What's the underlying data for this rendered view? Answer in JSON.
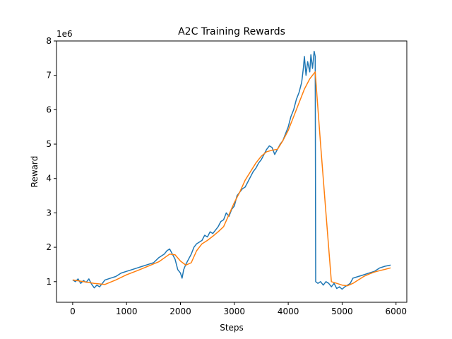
{
  "chart_data": {
    "type": "line",
    "title": "A2C Training Rewards",
    "xlabel": "Steps",
    "ylabel": "Reward",
    "y_scale_label": "1e6",
    "xlim": [
      -300,
      6200
    ],
    "ylim": [
      0.4,
      8.0
    ],
    "x_ticks": [
      0,
      1000,
      2000,
      3000,
      4000,
      5000,
      6000
    ],
    "y_ticks": [
      1,
      2,
      3,
      4,
      5,
      6,
      7,
      8
    ],
    "grid": false,
    "legend": "none",
    "series": [
      {
        "color": "#1f77b4",
        "points": [
          [
            0,
            1.05
          ],
          [
            50,
            1.0
          ],
          [
            100,
            1.08
          ],
          [
            150,
            0.95
          ],
          [
            200,
            1.03
          ],
          [
            250,
            0.98
          ],
          [
            300,
            1.08
          ],
          [
            350,
            0.93
          ],
          [
            400,
            0.82
          ],
          [
            450,
            0.9
          ],
          [
            500,
            0.85
          ],
          [
            550,
            0.95
          ],
          [
            600,
            1.05
          ],
          [
            700,
            1.1
          ],
          [
            800,
            1.15
          ],
          [
            900,
            1.25
          ],
          [
            1000,
            1.3
          ],
          [
            1100,
            1.35
          ],
          [
            1200,
            1.4
          ],
          [
            1300,
            1.45
          ],
          [
            1400,
            1.5
          ],
          [
            1500,
            1.55
          ],
          [
            1600,
            1.7
          ],
          [
            1700,
            1.8
          ],
          [
            1750,
            1.9
          ],
          [
            1800,
            1.95
          ],
          [
            1850,
            1.8
          ],
          [
            1900,
            1.65
          ],
          [
            1950,
            1.35
          ],
          [
            2000,
            1.25
          ],
          [
            2030,
            1.1
          ],
          [
            2060,
            1.35
          ],
          [
            2100,
            1.5
          ],
          [
            2200,
            1.8
          ],
          [
            2250,
            2.0
          ],
          [
            2300,
            2.1
          ],
          [
            2400,
            2.2
          ],
          [
            2450,
            2.35
          ],
          [
            2500,
            2.3
          ],
          [
            2550,
            2.45
          ],
          [
            2600,
            2.4
          ],
          [
            2650,
            2.5
          ],
          [
            2700,
            2.6
          ],
          [
            2750,
            2.75
          ],
          [
            2800,
            2.8
          ],
          [
            2850,
            3.0
          ],
          [
            2900,
            2.9
          ],
          [
            2950,
            3.1
          ],
          [
            3000,
            3.2
          ],
          [
            3050,
            3.5
          ],
          [
            3100,
            3.6
          ],
          [
            3150,
            3.7
          ],
          [
            3200,
            3.75
          ],
          [
            3250,
            3.9
          ],
          [
            3300,
            4.05
          ],
          [
            3350,
            4.2
          ],
          [
            3400,
            4.3
          ],
          [
            3450,
            4.45
          ],
          [
            3500,
            4.55
          ],
          [
            3550,
            4.7
          ],
          [
            3600,
            4.85
          ],
          [
            3650,
            4.95
          ],
          [
            3700,
            4.9
          ],
          [
            3750,
            4.7
          ],
          [
            3800,
            4.85
          ],
          [
            3850,
            5.0
          ],
          [
            3900,
            5.1
          ],
          [
            3950,
            5.3
          ],
          [
            4000,
            5.5
          ],
          [
            4050,
            5.8
          ],
          [
            4100,
            6.0
          ],
          [
            4150,
            6.3
          ],
          [
            4200,
            6.5
          ],
          [
            4250,
            6.8
          ],
          [
            4280,
            7.2
          ],
          [
            4300,
            7.55
          ],
          [
            4330,
            7.0
          ],
          [
            4360,
            7.4
          ],
          [
            4400,
            7.1
          ],
          [
            4420,
            7.6
          ],
          [
            4450,
            7.2
          ],
          [
            4480,
            7.7
          ],
          [
            4500,
            7.55
          ],
          [
            4510,
            1.0
          ],
          [
            4550,
            0.95
          ],
          [
            4600,
            1.0
          ],
          [
            4650,
            0.9
          ],
          [
            4700,
            1.0
          ],
          [
            4750,
            0.95
          ],
          [
            4800,
            0.85
          ],
          [
            4850,
            0.95
          ],
          [
            4900,
            0.8
          ],
          [
            4950,
            0.85
          ],
          [
            5000,
            0.78
          ],
          [
            5050,
            0.85
          ],
          [
            5100,
            0.9
          ],
          [
            5150,
            0.95
          ],
          [
            5200,
            1.1
          ],
          [
            5300,
            1.15
          ],
          [
            5400,
            1.2
          ],
          [
            5500,
            1.25
          ],
          [
            5600,
            1.3
          ],
          [
            5700,
            1.4
          ],
          [
            5800,
            1.45
          ],
          [
            5900,
            1.48
          ]
        ]
      },
      {
        "color": "#ff7f0e",
        "points": [
          [
            0,
            1.05
          ],
          [
            200,
            1.0
          ],
          [
            400,
            0.95
          ],
          [
            600,
            0.92
          ],
          [
            800,
            1.05
          ],
          [
            1000,
            1.2
          ],
          [
            1200,
            1.32
          ],
          [
            1400,
            1.45
          ],
          [
            1600,
            1.58
          ],
          [
            1800,
            1.8
          ],
          [
            1900,
            1.78
          ],
          [
            2000,
            1.6
          ],
          [
            2100,
            1.48
          ],
          [
            2200,
            1.55
          ],
          [
            2300,
            1.9
          ],
          [
            2400,
            2.1
          ],
          [
            2500,
            2.2
          ],
          [
            2600,
            2.32
          ],
          [
            2700,
            2.45
          ],
          [
            2800,
            2.6
          ],
          [
            2900,
            2.95
          ],
          [
            3000,
            3.3
          ],
          [
            3100,
            3.6
          ],
          [
            3200,
            3.95
          ],
          [
            3300,
            4.2
          ],
          [
            3400,
            4.45
          ],
          [
            3500,
            4.65
          ],
          [
            3600,
            4.78
          ],
          [
            3700,
            4.82
          ],
          [
            3800,
            4.85
          ],
          [
            3900,
            5.1
          ],
          [
            4000,
            5.4
          ],
          [
            4100,
            5.8
          ],
          [
            4200,
            6.2
          ],
          [
            4300,
            6.6
          ],
          [
            4400,
            6.9
          ],
          [
            4500,
            7.1
          ],
          [
            4600,
            5.0
          ],
          [
            4700,
            3.0
          ],
          [
            4800,
            1.0
          ],
          [
            4900,
            0.95
          ],
          [
            5000,
            0.9
          ],
          [
            5100,
            0.88
          ],
          [
            5200,
            0.95
          ],
          [
            5300,
            1.05
          ],
          [
            5400,
            1.15
          ],
          [
            5500,
            1.22
          ],
          [
            5600,
            1.28
          ],
          [
            5700,
            1.32
          ],
          [
            5800,
            1.36
          ],
          [
            5900,
            1.4
          ]
        ]
      }
    ]
  }
}
